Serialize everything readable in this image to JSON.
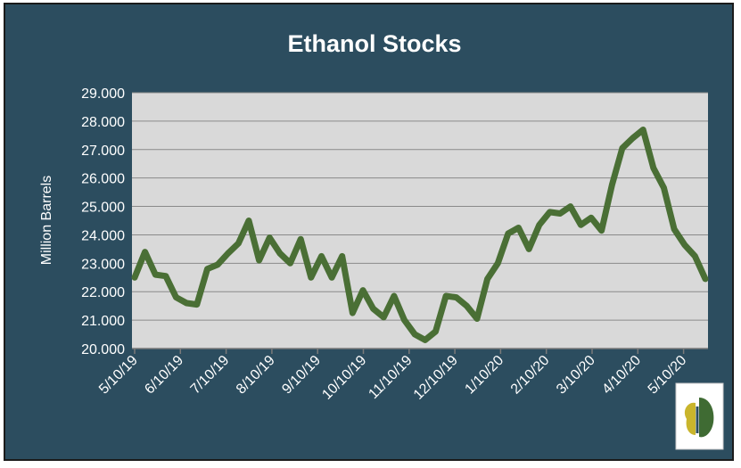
{
  "chart_data": {
    "type": "line",
    "title": "Ethanol Stocks",
    "xlabel": "",
    "ylabel": "Million Barrels",
    "ylim": [
      20,
      29
    ],
    "yticks": [
      "20.000",
      "21.000",
      "22.000",
      "23.000",
      "24.000",
      "25.000",
      "26.000",
      "27.000",
      "28.000",
      "29.000"
    ],
    "xticks": [
      "5/10/19",
      "6/10/19",
      "7/10/19",
      "8/10/19",
      "9/10/19",
      "10/10/19",
      "11/10/19",
      "12/10/19",
      "1/10/20",
      "2/10/20",
      "3/10/20",
      "4/10/20",
      "5/10/20"
    ],
    "grid": true,
    "legend": "none",
    "series": [
      {
        "color": "#4a6f35",
        "values": [
          22.5,
          23.4,
          22.6,
          22.55,
          21.8,
          21.6,
          21.55,
          22.8,
          22.95,
          23.35,
          23.7,
          24.5,
          23.1,
          23.9,
          23.35,
          23.0,
          23.85,
          22.5,
          23.25,
          22.5,
          23.25,
          21.25,
          22.05,
          21.4,
          21.1,
          21.85,
          21.0,
          20.5,
          20.3,
          20.6,
          21.85,
          21.8,
          21.5,
          21.05,
          22.45,
          23.0,
          24.05,
          24.25,
          23.5,
          24.35,
          24.8,
          24.75,
          25.0,
          24.35,
          24.6,
          24.15,
          25.75,
          27.05,
          27.4,
          27.7,
          26.35,
          25.65,
          24.2,
          23.65,
          23.25,
          22.45
        ]
      }
    ]
  },
  "logo": {
    "name": "logo-icon"
  },
  "colors": {
    "background": "#2c4d5f",
    "plot": "#d9d9d9",
    "line": "#4a6f35"
  }
}
